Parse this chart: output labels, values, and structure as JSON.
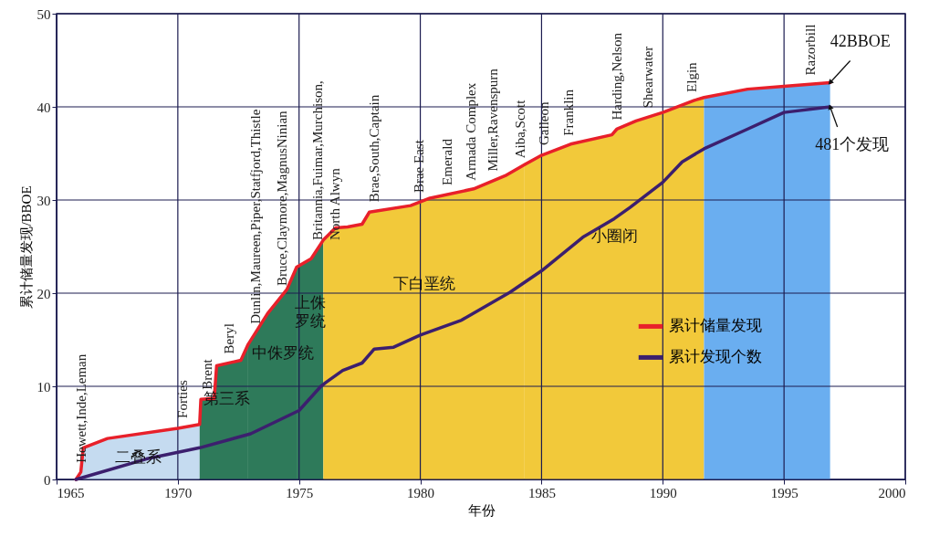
{
  "chart_data": {
    "type": "line",
    "xlabel": "年份",
    "ylabel": "累计储量发现/BBOE",
    "xlim": [
      1965,
      2000
    ],
    "xticks": [
      1965,
      1970,
      1975,
      1980,
      1985,
      1990,
      1995,
      2000
    ],
    "ylim": [
      0,
      50
    ],
    "yticks": [
      0,
      10,
      20,
      30,
      40,
      50
    ],
    "grid": true,
    "legend": "right",
    "series": [
      {
        "type": "area",
        "name": "二叠系",
        "color": "#c5dbf0",
        "x": [
          1965.8,
          1966.0,
          1966.1,
          1967.1,
          1970,
          1970.9
        ],
        "values": [
          0,
          0.8,
          3.4,
          4.4,
          5.5,
          5.9
        ]
      },
      {
        "type": "area",
        "name": "第三系",
        "color": "#2e7a5a",
        "x": [
          1970.9,
          1970.95,
          1971.5,
          1971.6,
          1972.6,
          1972.9
        ],
        "values": [
          5.9,
          8.6,
          8.7,
          12.2,
          12.8,
          14.5
        ]
      },
      {
        "type": "area",
        "name": "中侏罗统",
        "color": "#2e7a5a",
        "x": [
          1972.9,
          1973.7,
          1974.5,
          1974.9
        ],
        "values": [
          14.5,
          17.8,
          20.4,
          22.8
        ]
      },
      {
        "type": "area",
        "name": "上侏罗统",
        "color": "#2e7a5a",
        "x": [
          1974.9,
          1975.5,
          1976
        ],
        "values": [
          22.8,
          23.7,
          25.7
        ]
      },
      {
        "type": "area",
        "name": "下白垩统",
        "color": "#f2c93a",
        "x": [
          1976,
          1976.5,
          1977,
          1977.6,
          1977.9,
          1979.6,
          1980.4,
          1982.2,
          1983.5,
          1984.3
        ],
        "values": [
          25.7,
          27,
          27.1,
          27.4,
          28.7,
          29.4,
          30.2,
          31.2,
          32.6,
          33.8
        ]
      },
      {
        "type": "area",
        "name": "小圈闭",
        "color": "#f2c93a",
        "x": [
          1984.3,
          1985,
          1986.2,
          1987.9,
          1988.1,
          1988.9,
          1990,
          1991.3,
          1991.7
        ],
        "values": [
          33.8,
          34.8,
          36,
          37,
          37.6,
          38.5,
          39.4,
          40.7,
          41
        ]
      },
      {
        "type": "area",
        "color": "#6aaef0",
        "x": [
          1991.7,
          1993.5,
          1995,
          1996.9
        ],
        "values": [
          41,
          41.9,
          42.2,
          42.6
        ]
      },
      {
        "name": "累计储量发现",
        "color": "#e8202a",
        "x": [
          1965.8,
          1966.0,
          1966.1,
          1967.1,
          1970,
          1970.9,
          1970.95,
          1971.5,
          1971.6,
          1972.6,
          1972.9,
          1973.7,
          1974.5,
          1974.9,
          1975.5,
          1976,
          1976.5,
          1977,
          1977.6,
          1977.9,
          1979.6,
          1980.4,
          1982.2,
          1983.5,
          1984.3,
          1985,
          1986.2,
          1987.9,
          1988.1,
          1988.9,
          1990,
          1991.3,
          1991.7,
          1993.5,
          1995,
          1996.9
        ],
        "values": [
          0,
          0.8,
          3.4,
          4.4,
          5.5,
          5.9,
          8.6,
          8.7,
          12.2,
          12.8,
          14.5,
          17.8,
          20.4,
          22.8,
          23.7,
          25.7,
          27,
          27.1,
          27.4,
          28.7,
          29.4,
          30.2,
          31.2,
          32.6,
          33.8,
          34.8,
          36,
          37,
          37.6,
          38.5,
          39.4,
          40.7,
          41,
          41.9,
          42.2,
          42.6
        ]
      },
      {
        "name": "累计发现个数",
        "color": "#3c1f6e",
        "x": [
          1965.8,
          1968.7,
          1970.9,
          1973,
          1975,
          1975.9,
          1976.1,
          1976.8,
          1977.6,
          1978.1,
          1978.9,
          1980,
          1981.7,
          1983.7,
          1985,
          1986.7,
          1988,
          1988.65,
          1990,
          1990.8,
          1991.7,
          1993.4,
          1995,
          1996.9
        ],
        "values": [
          0,
          2.2,
          3.4,
          4.9,
          7.4,
          10,
          10.4,
          11.7,
          12.5,
          14,
          14.2,
          15.5,
          17.1,
          20.1,
          22.4,
          26,
          28,
          29.2,
          31.9,
          34.1,
          35.5,
          37.5,
          39.4,
          40
        ]
      }
    ],
    "annotations": [
      {
        "text": "Hewett,Inde,Leman",
        "x": 1966.0,
        "y": 0.8
      },
      {
        "text": "Forties",
        "x": 1970.2,
        "y": 5.6
      },
      {
        "text": "Brent",
        "x": 1971.2,
        "y": 8.65
      },
      {
        "text": "Beryl",
        "x": 1972.1,
        "y": 12.5
      },
      {
        "text": "Dunlin,Maureen,Piper,Statfjord,Thistle",
        "x": 1973.2,
        "y": 15.7
      },
      {
        "text": "Bruce,Claymore,MagnusNinian",
        "x": 1974.3,
        "y": 19.8
      },
      {
        "text": "Britannia,Fuimar,Murchison,\nNorth Alwyn",
        "x": 1975.75,
        "y": 24.7
      },
      {
        "text": "Brae,South,Captain",
        "x": 1978.1,
        "y": 28.8
      },
      {
        "text": "Brae East",
        "x": 1979.95,
        "y": 29.8
      },
      {
        "text": "Emerald",
        "x": 1981.1,
        "y": 30.6
      },
      {
        "text": "Armada Complex",
        "x": 1982.1,
        "y": 31.1
      },
      {
        "text": "Miller,Ravenspurn",
        "x": 1983,
        "y": 32.1
      },
      {
        "text": "Aiba,Scott",
        "x": 1984.1,
        "y": 33.5
      },
      {
        "text": "Galleon",
        "x": 1985.1,
        "y": 34.9
      },
      {
        "text": "Franklin",
        "x": 1986.1,
        "y": 35.9
      },
      {
        "text": "Harding,Nelson",
        "x": 1988.1,
        "y": 37.6
      },
      {
        "text": "Shearwater",
        "x": 1989.4,
        "y": 38.9
      },
      {
        "text": "Elgin",
        "x": 1991.2,
        "y": 40.6
      },
      {
        "text": "Razorbill",
        "x": 1996.1,
        "y": 42.4
      },
      {
        "text": "42BBOE",
        "x": 1996.9,
        "y": 42.6
      },
      {
        "text": "481个发现",
        "x": 1996.9,
        "y": 40
      }
    ]
  }
}
